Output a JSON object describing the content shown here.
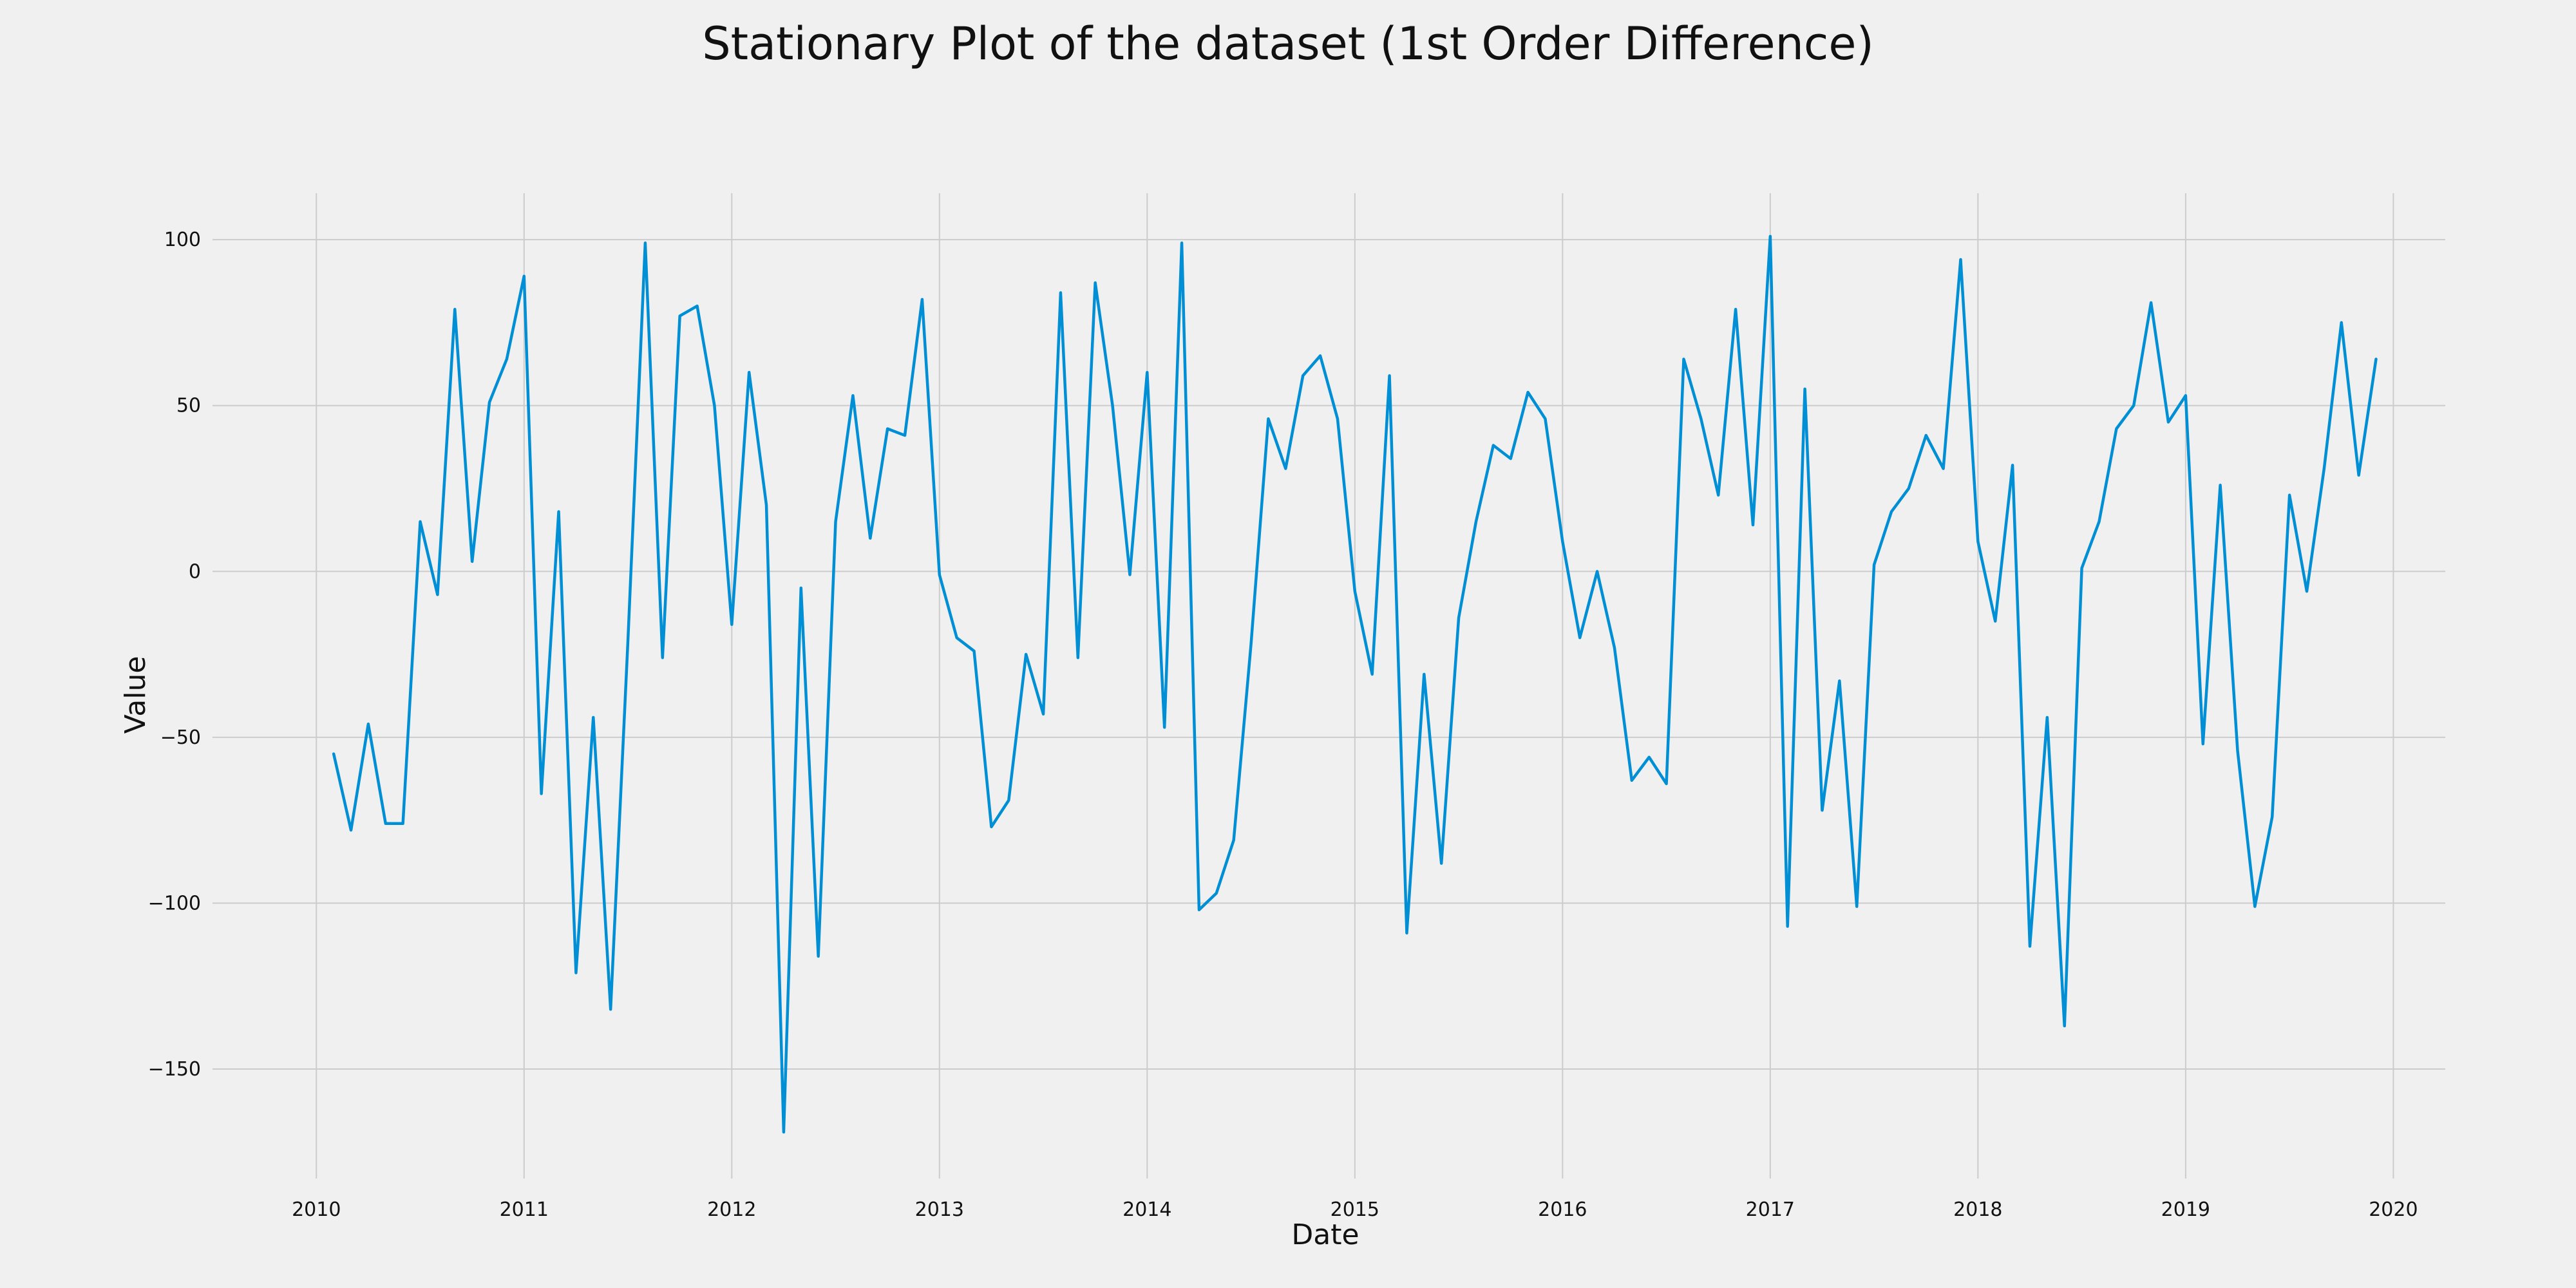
{
  "chart_data": {
    "type": "line",
    "title": "Stationary Plot of the dataset (1st Order Difference)",
    "xlabel": "Date",
    "ylabel": "Value",
    "xlim": [
      "2009-07",
      "2020-04"
    ],
    "ylim": [
      -183,
      114
    ],
    "grid": true,
    "x_ticks": [
      "2010",
      "2011",
      "2012",
      "2013",
      "2014",
      "2015",
      "2016",
      "2017",
      "2018",
      "2019",
      "2020"
    ],
    "y_ticks": [
      -150,
      -100,
      -50,
      0,
      50,
      100
    ],
    "y_tick_labels": [
      "−150",
      "−100",
      "−50",
      "0",
      "50",
      "100"
    ],
    "colors": {
      "line": "#008fd5",
      "background": "#f0f0f0",
      "grid": "#cccccc"
    },
    "series": [
      {
        "color": "#008fd5",
        "x": [
          "2010-02",
          "2010-03",
          "2010-04",
          "2010-05",
          "2010-06",
          "2010-07",
          "2010-08",
          "2010-09",
          "2010-10",
          "2010-11",
          "2010-12",
          "2011-01",
          "2011-02",
          "2011-03",
          "2011-04",
          "2011-05",
          "2011-06",
          "2011-07",
          "2011-08",
          "2011-09",
          "2011-10",
          "2011-11",
          "2011-12",
          "2012-01",
          "2012-02",
          "2012-03",
          "2012-04",
          "2012-05",
          "2012-06",
          "2012-07",
          "2012-08",
          "2012-09",
          "2012-10",
          "2012-11",
          "2012-12",
          "2013-01",
          "2013-02",
          "2013-03",
          "2013-04",
          "2013-05",
          "2013-06",
          "2013-07",
          "2013-08",
          "2013-09",
          "2013-10",
          "2013-11",
          "2013-12",
          "2014-01",
          "2014-02",
          "2014-03",
          "2014-04",
          "2014-05",
          "2014-06",
          "2014-07",
          "2014-08",
          "2014-09",
          "2014-10",
          "2014-11",
          "2014-12",
          "2015-01",
          "2015-02",
          "2015-03",
          "2015-04",
          "2015-05",
          "2015-06",
          "2015-07",
          "2015-08",
          "2015-09",
          "2015-10",
          "2015-11",
          "2015-12",
          "2016-01",
          "2016-02",
          "2016-03",
          "2016-04",
          "2016-05",
          "2016-06",
          "2016-07",
          "2016-08",
          "2016-09",
          "2016-10",
          "2016-11",
          "2016-12",
          "2017-01",
          "2017-02",
          "2017-03",
          "2017-04",
          "2017-05",
          "2017-06",
          "2017-07",
          "2017-08",
          "2017-09",
          "2017-10",
          "2017-11",
          "2017-12",
          "2018-01",
          "2018-02",
          "2018-03",
          "2018-04",
          "2018-05",
          "2018-06",
          "2018-07",
          "2018-08",
          "2018-09",
          "2018-10",
          "2018-11",
          "2018-12",
          "2019-01",
          "2019-02",
          "2019-03",
          "2019-04",
          "2019-05",
          "2019-06",
          "2019-07",
          "2019-08",
          "2019-09",
          "2019-10",
          "2019-11",
          "2019-12"
        ],
        "y": [
          -55,
          -78,
          -46,
          -76,
          -76,
          15,
          -7,
          79,
          3,
          51,
          64,
          89,
          -67,
          18,
          -121,
          -44,
          -132,
          -21,
          99,
          -26,
          77,
          80,
          50,
          -16,
          60,
          20,
          -169,
          -5,
          -116,
          15,
          53,
          10,
          43,
          41,
          82,
          -1,
          -20,
          -24,
          -77,
          -69,
          -25,
          -43,
          84,
          -26,
          87,
          50,
          -1,
          60,
          -47,
          99,
          -102,
          -97,
          -81,
          -22,
          46,
          31,
          59,
          65,
          46,
          -6,
          -31,
          59,
          -109,
          -31,
          -88,
          -14,
          15,
          38,
          34,
          54,
          46,
          9,
          -20,
          0,
          -23,
          -63,
          -56,
          -64,
          64,
          46,
          23,
          79,
          14,
          101,
          -107,
          55,
          -72,
          -33,
          -101,
          2,
          18,
          25,
          41,
          31,
          94,
          9,
          -15,
          32,
          -113,
          -44,
          -137,
          1,
          15,
          43,
          50,
          81,
          45,
          53,
          -52,
          26,
          -54,
          -101,
          -74,
          23,
          -6,
          31,
          75,
          29,
          64
        ]
      }
    ]
  }
}
